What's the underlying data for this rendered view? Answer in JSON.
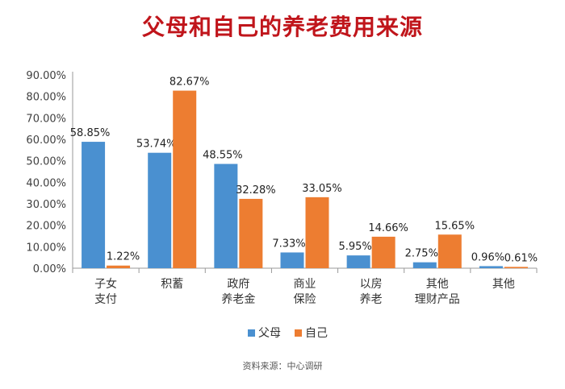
{
  "title": "父母和自己的养老费用来源",
  "colors": {
    "title": "#c0151b",
    "parents": "#4a90d0",
    "self": "#ed7d31",
    "axis": "#999999",
    "grid": "#e6e6e6"
  },
  "source": "资料来源：中心调研",
  "chart_data": {
    "type": "bar",
    "title": "父母和自己的养老费用来源",
    "categories": [
      [
        "子女",
        "支付"
      ],
      [
        "积蓄"
      ],
      [
        "政府",
        "养老金"
      ],
      [
        "商业",
        "保险"
      ],
      [
        "以房",
        "养老"
      ],
      [
        "其他",
        "理财产品"
      ],
      [
        "其他"
      ]
    ],
    "series": [
      {
        "name": "父母",
        "values": [
          58.85,
          53.74,
          48.55,
          7.33,
          5.95,
          2.75,
          0.96
        ]
      },
      {
        "name": "自己",
        "values": [
          1.22,
          82.67,
          32.28,
          33.05,
          14.66,
          15.65,
          0.61
        ]
      }
    ],
    "data_labels": [
      [
        "58.85%",
        "53.74%",
        "48.55%",
        "7.33%",
        "5.95%",
        "2.75%",
        "0.96%"
      ],
      [
        "1.22%",
        "82.67%",
        "32.28%",
        "33.05%",
        "14.66%",
        "15.65%",
        "0.61%"
      ]
    ],
    "yticks": [
      "0.00%",
      "10.00%",
      "20.00%",
      "30.00%",
      "40.00%",
      "50.00%",
      "60.00%",
      "70.00%",
      "80.00%",
      "90.00%"
    ],
    "ylim": [
      0,
      90
    ],
    "grid": false,
    "legend": "bottom-center"
  }
}
